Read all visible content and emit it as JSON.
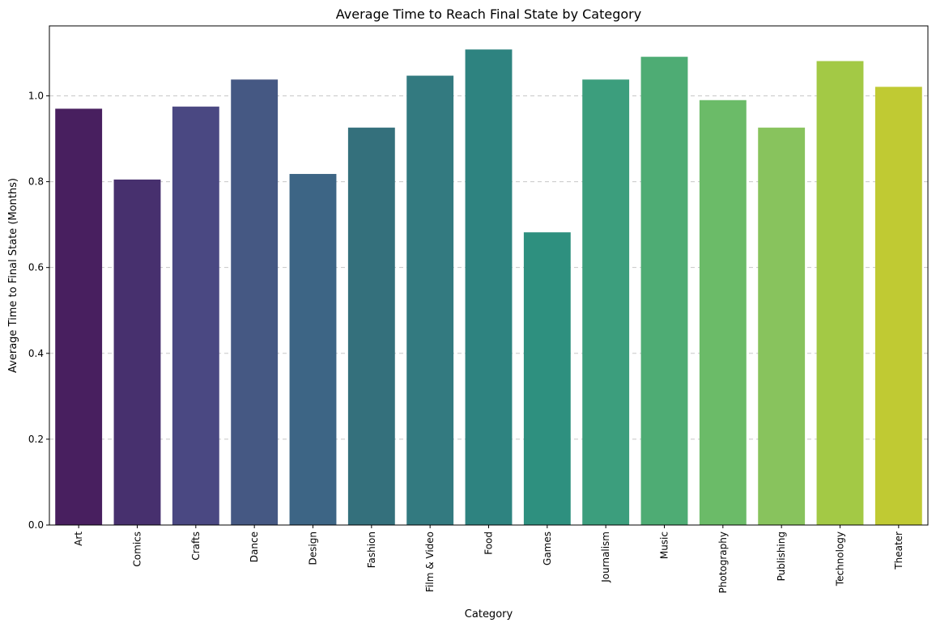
{
  "chart_data": {
    "type": "bar",
    "title": "Average Time to Reach Final State by Category",
    "xlabel": "Category",
    "ylabel": "Average Time to Final State (Months)",
    "categories": [
      "Art",
      "Comics",
      "Crafts",
      "Dance",
      "Design",
      "Fashion",
      "Film & Video",
      "Food",
      "Games",
      "Journalism",
      "Music",
      "Photography",
      "Publishing",
      "Technology",
      "Theater"
    ],
    "values": [
      0.97,
      0.805,
      0.975,
      1.038,
      0.818,
      0.926,
      1.047,
      1.108,
      0.682,
      1.038,
      1.091,
      0.99,
      0.926,
      1.081,
      1.021
    ],
    "colors": [
      "#481f5f",
      "#47306e",
      "#4a4882",
      "#455883",
      "#3d6585",
      "#34707c",
      "#337a80",
      "#2e8380",
      "#2e907f",
      "#3c9e7d",
      "#4eac74",
      "#6bbb68",
      "#88c35d",
      "#a3c945",
      "#c0ca33"
    ],
    "ylim": [
      0,
      1.163
    ],
    "yticks": [
      "0.0",
      "0.2",
      "0.4",
      "0.6",
      "0.8",
      "1.0"
    ],
    "grid": "y-dashed",
    "legend": "none"
  }
}
